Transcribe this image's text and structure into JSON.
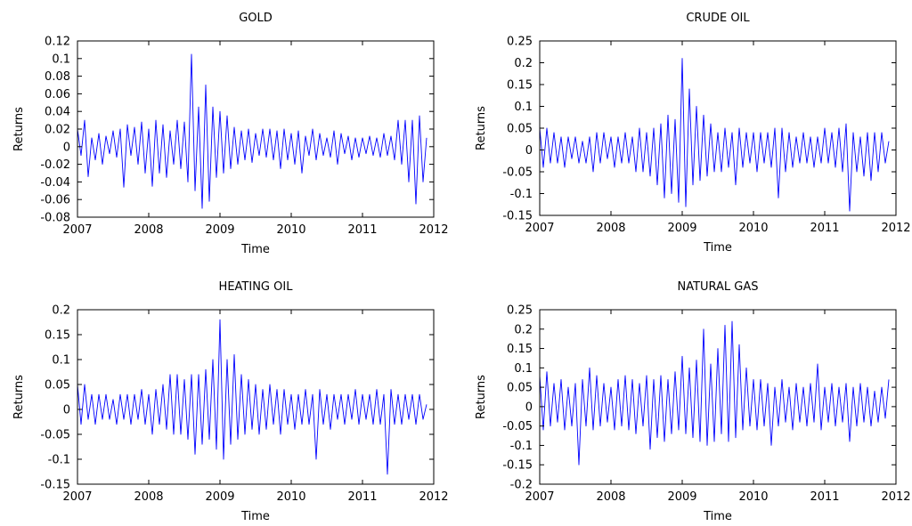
{
  "chart_data": [
    {
      "type": "line",
      "title": "GOLD",
      "xlabel": "Time",
      "ylabel": "Returns",
      "xlim": [
        2007,
        2012
      ],
      "ylim": [
        -0.08,
        0.12
      ],
      "xticks": [
        2007,
        2008,
        2009,
        2010,
        2011,
        2012
      ],
      "xtick_labels": [
        "2007",
        "2008",
        "2009",
        "2010",
        "2011",
        "2012"
      ],
      "yticks": [
        -0.08,
        -0.06,
        -0.04,
        -0.02,
        0,
        0.02,
        0.04,
        0.06,
        0.08,
        0.1,
        0.12
      ],
      "ytick_labels": [
        "-0.08",
        "-0.06",
        "-0.04",
        "-0.02",
        "0",
        "0.02",
        "0.04",
        "0.06",
        "0.08",
        "0.1",
        "0.12"
      ],
      "grid": false,
      "series_color": "#0000ff",
      "series": [
        {
          "x": [
            2007.0,
            2007.05,
            2007.1,
            2007.15,
            2007.2,
            2007.25,
            2007.3,
            2007.35,
            2007.4,
            2007.45,
            2007.5,
            2007.55,
            2007.6,
            2007.65,
            2007.7,
            2007.75,
            2007.8,
            2007.85,
            2007.9,
            2007.95,
            2008.0,
            2008.05,
            2008.1,
            2008.15,
            2008.2,
            2008.25,
            2008.3,
            2008.35,
            2008.4,
            2008.45,
            2008.5,
            2008.55,
            2008.6,
            2008.65,
            2008.7,
            2008.75,
            2008.8,
            2008.85,
            2008.9,
            2008.95,
            2009.0,
            2009.05,
            2009.1,
            2009.15,
            2009.2,
            2009.25,
            2009.3,
            2009.35,
            2009.4,
            2009.45,
            2009.5,
            2009.55,
            2009.6,
            2009.65,
            2009.7,
            2009.75,
            2009.8,
            2009.85,
            2009.9,
            2009.95,
            2010.0,
            2010.05,
            2010.1,
            2010.15,
            2010.2,
            2010.25,
            2010.3,
            2010.35,
            2010.4,
            2010.45,
            2010.5,
            2010.55,
            2010.6,
            2010.65,
            2010.7,
            2010.75,
            2010.8,
            2010.85,
            2010.9,
            2010.95,
            2011.0,
            2011.05,
            2011.1,
            2011.15,
            2011.2,
            2011.25,
            2011.3,
            2011.35,
            2011.4,
            2011.45,
            2011.5,
            2011.55,
            2011.6,
            2011.65,
            2011.7,
            2011.75,
            2011.8,
            2011.85,
            2011.9
          ],
          "y": [
            0.02,
            -0.01,
            0.03,
            -0.034,
            0.01,
            -0.015,
            0.015,
            -0.02,
            0.012,
            -0.008,
            0.018,
            -0.012,
            0.02,
            -0.046,
            0.025,
            -0.01,
            0.022,
            -0.02,
            0.028,
            -0.03,
            0.02,
            -0.045,
            0.03,
            -0.03,
            0.025,
            -0.035,
            0.018,
            -0.02,
            0.03,
            -0.025,
            0.028,
            -0.04,
            0.105,
            -0.05,
            0.045,
            -0.07,
            0.07,
            -0.062,
            0.045,
            -0.035,
            0.04,
            -0.03,
            0.035,
            -0.025,
            0.022,
            -0.02,
            0.018,
            -0.015,
            0.02,
            -0.018,
            0.015,
            -0.01,
            0.02,
            -0.012,
            0.02,
            -0.015,
            0.018,
            -0.025,
            0.02,
            -0.015,
            0.015,
            -0.02,
            0.018,
            -0.03,
            0.012,
            -0.01,
            0.02,
            -0.015,
            0.015,
            -0.01,
            0.01,
            -0.012,
            0.018,
            -0.02,
            0.015,
            -0.008,
            0.012,
            -0.015,
            0.01,
            -0.012,
            0.01,
            -0.008,
            0.012,
            -0.01,
            0.01,
            -0.012,
            0.015,
            -0.01,
            0.012,
            -0.015,
            0.03,
            -0.02,
            0.03,
            -0.04,
            0.03,
            -0.065,
            0.035,
            -0.04,
            0.01
          ]
        }
      ]
    },
    {
      "type": "line",
      "title": "CRUDE OIL",
      "xlabel": "Time",
      "ylabel": "Returns",
      "xlim": [
        2007,
        2012
      ],
      "ylim": [
        -0.15,
        0.25
      ],
      "xticks": [
        2007,
        2008,
        2009,
        2010,
        2011,
        2012
      ],
      "xtick_labels": [
        "2007",
        "2008",
        "2009",
        "2010",
        "2011",
        "2012"
      ],
      "yticks": [
        -0.15,
        -0.1,
        -0.05,
        0,
        0.05,
        0.1,
        0.15,
        0.2,
        0.25
      ],
      "ytick_labels": [
        "-0.15",
        "-0.1",
        "-0.05",
        "0",
        "0.05",
        "0.1",
        "0.15",
        "0.2",
        "0.25"
      ],
      "grid": false,
      "series_color": "#0000ff",
      "series": [
        {
          "x": [
            2007.0,
            2007.05,
            2007.1,
            2007.15,
            2007.2,
            2007.25,
            2007.3,
            2007.35,
            2007.4,
            2007.45,
            2007.5,
            2007.55,
            2007.6,
            2007.65,
            2007.7,
            2007.75,
            2007.8,
            2007.85,
            2007.9,
            2007.95,
            2008.0,
            2008.05,
            2008.1,
            2008.15,
            2008.2,
            2008.25,
            2008.3,
            2008.35,
            2008.4,
            2008.45,
            2008.5,
            2008.55,
            2008.6,
            2008.65,
            2008.7,
            2008.75,
            2008.8,
            2008.85,
            2008.9,
            2008.95,
            2009.0,
            2009.05,
            2009.1,
            2009.15,
            2009.2,
            2009.25,
            2009.3,
            2009.35,
            2009.4,
            2009.45,
            2009.5,
            2009.55,
            2009.6,
            2009.65,
            2009.7,
            2009.75,
            2009.8,
            2009.85,
            2009.9,
            2009.95,
            2010.0,
            2010.05,
            2010.1,
            2010.15,
            2010.2,
            2010.25,
            2010.3,
            2010.35,
            2010.4,
            2010.45,
            2010.5,
            2010.55,
            2010.6,
            2010.65,
            2010.7,
            2010.75,
            2010.8,
            2010.85,
            2010.9,
            2010.95,
            2011.0,
            2011.05,
            2011.1,
            2011.15,
            2011.2,
            2011.25,
            2011.3,
            2011.35,
            2011.4,
            2011.45,
            2011.5,
            2011.55,
            2011.6,
            2011.65,
            2011.7,
            2011.75,
            2011.8,
            2011.85,
            2011.9
          ],
          "y": [
            0.05,
            -0.04,
            0.05,
            -0.03,
            0.04,
            -0.03,
            0.03,
            -0.04,
            0.03,
            -0.02,
            0.03,
            -0.03,
            0.02,
            -0.03,
            0.03,
            -0.05,
            0.04,
            -0.03,
            0.04,
            -0.02,
            0.03,
            -0.04,
            0.03,
            -0.03,
            0.04,
            -0.03,
            0.03,
            -0.05,
            0.05,
            -0.05,
            0.04,
            -0.06,
            0.05,
            -0.08,
            0.06,
            -0.11,
            0.08,
            -0.1,
            0.07,
            -0.12,
            0.21,
            -0.13,
            0.14,
            -0.08,
            0.1,
            -0.07,
            0.08,
            -0.06,
            0.06,
            -0.05,
            0.04,
            -0.05,
            0.05,
            -0.04,
            0.04,
            -0.08,
            0.05,
            -0.04,
            0.04,
            -0.03,
            0.04,
            -0.05,
            0.04,
            -0.03,
            0.04,
            -0.04,
            0.05,
            -0.11,
            0.05,
            -0.05,
            0.04,
            -0.04,
            0.03,
            -0.03,
            0.04,
            -0.03,
            0.03,
            -0.04,
            0.03,
            -0.03,
            0.05,
            -0.03,
            0.04,
            -0.04,
            0.05,
            -0.05,
            0.06,
            -0.14,
            0.04,
            -0.05,
            0.03,
            -0.06,
            0.04,
            -0.07,
            0.04,
            -0.05,
            0.04,
            -0.03,
            0.02
          ]
        }
      ]
    },
    {
      "type": "line",
      "title": "HEATING OIL",
      "xlabel": "Time",
      "ylabel": "Returns",
      "xlim": [
        2007,
        2012
      ],
      "ylim": [
        -0.15,
        0.2
      ],
      "xticks": [
        2007,
        2008,
        2009,
        2010,
        2011,
        2012
      ],
      "xtick_labels": [
        "2007",
        "2008",
        "2009",
        "2010",
        "2011",
        "2012"
      ],
      "yticks": [
        -0.15,
        -0.1,
        -0.05,
        0,
        0.05,
        0.1,
        0.15,
        0.2
      ],
      "ytick_labels": [
        "-0.15",
        "-0.1",
        "-0.05",
        "0",
        "0.05",
        "0.1",
        "0.15",
        "0.2"
      ],
      "grid": false,
      "series_color": "#0000ff",
      "series": [
        {
          "x": [
            2007.0,
            2007.05,
            2007.1,
            2007.15,
            2007.2,
            2007.25,
            2007.3,
            2007.35,
            2007.4,
            2007.45,
            2007.5,
            2007.55,
            2007.6,
            2007.65,
            2007.7,
            2007.75,
            2007.8,
            2007.85,
            2007.9,
            2007.95,
            2008.0,
            2008.05,
            2008.1,
            2008.15,
            2008.2,
            2008.25,
            2008.3,
            2008.35,
            2008.4,
            2008.45,
            2008.5,
            2008.55,
            2008.6,
            2008.65,
            2008.7,
            2008.75,
            2008.8,
            2008.85,
            2008.9,
            2008.95,
            2009.0,
            2009.05,
            2009.1,
            2009.15,
            2009.2,
            2009.25,
            2009.3,
            2009.35,
            2009.4,
            2009.45,
            2009.5,
            2009.55,
            2009.6,
            2009.65,
            2009.7,
            2009.75,
            2009.8,
            2009.85,
            2009.9,
            2009.95,
            2010.0,
            2010.05,
            2010.1,
            2010.15,
            2010.2,
            2010.25,
            2010.3,
            2010.35,
            2010.4,
            2010.45,
            2010.5,
            2010.55,
            2010.6,
            2010.65,
            2010.7,
            2010.75,
            2010.8,
            2010.85,
            2010.9,
            2010.95,
            2011.0,
            2011.05,
            2011.1,
            2011.15,
            2011.2,
            2011.25,
            2011.3,
            2011.35,
            2011.4,
            2011.45,
            2011.5,
            2011.55,
            2011.6,
            2011.65,
            2011.7,
            2011.75,
            2011.8,
            2011.85,
            2011.9
          ],
          "y": [
            0.05,
            -0.03,
            0.05,
            -0.02,
            0.03,
            -0.03,
            0.03,
            -0.02,
            0.03,
            -0.02,
            0.02,
            -0.03,
            0.03,
            -0.02,
            0.03,
            -0.03,
            0.03,
            -0.02,
            0.04,
            -0.03,
            0.03,
            -0.05,
            0.04,
            -0.03,
            0.05,
            -0.04,
            0.07,
            -0.05,
            0.07,
            -0.05,
            0.06,
            -0.06,
            0.07,
            -0.09,
            0.07,
            -0.07,
            0.08,
            -0.06,
            0.1,
            -0.08,
            0.18,
            -0.1,
            0.1,
            -0.07,
            0.11,
            -0.06,
            0.07,
            -0.05,
            0.06,
            -0.04,
            0.05,
            -0.05,
            0.04,
            -0.04,
            0.05,
            -0.03,
            0.04,
            -0.05,
            0.04,
            -0.03,
            0.03,
            -0.04,
            0.03,
            -0.03,
            0.04,
            -0.03,
            0.03,
            -0.1,
            0.04,
            -0.03,
            0.03,
            -0.04,
            0.03,
            -0.02,
            0.03,
            -0.03,
            0.03,
            -0.02,
            0.04,
            -0.03,
            0.03,
            -0.02,
            0.03,
            -0.03,
            0.04,
            -0.03,
            0.03,
            -0.13,
            0.04,
            -0.03,
            0.03,
            -0.03,
            0.03,
            -0.02,
            0.03,
            -0.03,
            0.03,
            -0.02,
            0.01
          ]
        }
      ]
    },
    {
      "type": "line",
      "title": "NATURAL GAS",
      "xlabel": "Time",
      "ylabel": "Returns",
      "xlim": [
        2007,
        2012
      ],
      "ylim": [
        -0.2,
        0.25
      ],
      "xticks": [
        2007,
        2008,
        2009,
        2010,
        2011,
        2012
      ],
      "xtick_labels": [
        "2007",
        "2008",
        "2009",
        "2010",
        "2011",
        "2012"
      ],
      "yticks": [
        -0.2,
        -0.15,
        -0.1,
        -0.05,
        0,
        0.05,
        0.1,
        0.15,
        0.2,
        0.25
      ],
      "ytick_labels": [
        "-0.2",
        "-0.15",
        "-0.1",
        "-0.05",
        "0",
        "0.05",
        "0.1",
        "0.15",
        "0.2",
        "0.25"
      ],
      "grid": false,
      "series_color": "#0000ff",
      "series": [
        {
          "x": [
            2007.0,
            2007.05,
            2007.1,
            2007.15,
            2007.2,
            2007.25,
            2007.3,
            2007.35,
            2007.4,
            2007.45,
            2007.5,
            2007.55,
            2007.6,
            2007.65,
            2007.7,
            2007.75,
            2007.8,
            2007.85,
            2007.9,
            2007.95,
            2008.0,
            2008.05,
            2008.1,
            2008.15,
            2008.2,
            2008.25,
            2008.3,
            2008.35,
            2008.4,
            2008.45,
            2008.5,
            2008.55,
            2008.6,
            2008.65,
            2008.7,
            2008.75,
            2008.8,
            2008.85,
            2008.9,
            2008.95,
            2009.0,
            2009.05,
            2009.1,
            2009.15,
            2009.2,
            2009.25,
            2009.3,
            2009.35,
            2009.4,
            2009.45,
            2009.5,
            2009.55,
            2009.6,
            2009.65,
            2009.7,
            2009.75,
            2009.8,
            2009.85,
            2009.9,
            2009.95,
            2010.0,
            2010.05,
            2010.1,
            2010.15,
            2010.2,
            2010.25,
            2010.3,
            2010.35,
            2010.4,
            2010.45,
            2010.5,
            2010.55,
            2010.6,
            2010.65,
            2010.7,
            2010.75,
            2010.8,
            2010.85,
            2010.9,
            2010.95,
            2011.0,
            2011.05,
            2011.1,
            2011.15,
            2011.2,
            2011.25,
            2011.3,
            2011.35,
            2011.4,
            2011.45,
            2011.5,
            2011.55,
            2011.6,
            2011.65,
            2011.7,
            2011.75,
            2011.8,
            2011.85,
            2011.9
          ],
          "y": [
            0.08,
            -0.06,
            0.09,
            -0.05,
            0.06,
            -0.04,
            0.07,
            -0.06,
            0.05,
            -0.05,
            0.06,
            -0.15,
            0.07,
            -0.05,
            0.1,
            -0.06,
            0.08,
            -0.05,
            0.06,
            -0.04,
            0.05,
            -0.06,
            0.07,
            -0.05,
            0.08,
            -0.06,
            0.07,
            -0.07,
            0.06,
            -0.05,
            0.08,
            -0.11,
            0.07,
            -0.08,
            0.08,
            -0.09,
            0.07,
            -0.07,
            0.09,
            -0.06,
            0.13,
            -0.07,
            0.1,
            -0.08,
            0.12,
            -0.09,
            0.2,
            -0.1,
            0.11,
            -0.09,
            0.15,
            -0.07,
            0.21,
            -0.09,
            0.22,
            -0.08,
            0.16,
            -0.06,
            0.1,
            -0.05,
            0.07,
            -0.06,
            0.07,
            -0.05,
            0.06,
            -0.1,
            0.05,
            -0.05,
            0.07,
            -0.04,
            0.05,
            -0.06,
            0.06,
            -0.04,
            0.05,
            -0.05,
            0.06,
            -0.04,
            0.11,
            -0.06,
            0.05,
            -0.04,
            0.06,
            -0.05,
            0.05,
            -0.04,
            0.06,
            -0.09,
            0.05,
            -0.05,
            0.06,
            -0.04,
            0.05,
            -0.05,
            0.04,
            -0.04,
            0.05,
            -0.03,
            0.07
          ]
        }
      ]
    }
  ]
}
